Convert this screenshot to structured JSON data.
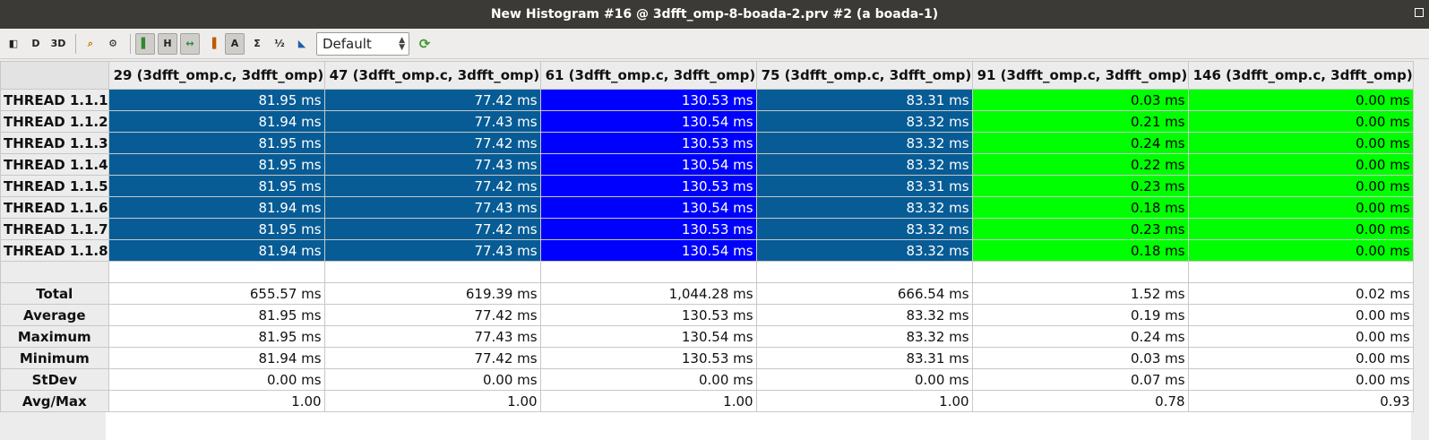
{
  "window": {
    "title": "New Histogram #16 @ 3dfft_omp-8-boada-2.prv #2 (a boada-1)"
  },
  "toolbar": {
    "buttons": [
      {
        "name": "ce-icon",
        "glyph": "◧",
        "pressed": false
      },
      {
        "name": "d-icon",
        "glyph": "D",
        "pressed": false
      },
      {
        "name": "3d-label-icon",
        "glyph": "3D",
        "pressed": false
      },
      {
        "name": "zoom-icon",
        "glyph": "⌕",
        "pressed": false
      },
      {
        "name": "search-gear-icon",
        "glyph": "⚙",
        "pressed": false
      },
      {
        "name": "gradient-color-icon",
        "glyph": "▌",
        "pressed": true
      },
      {
        "name": "horizontal-icon",
        "glyph": "H",
        "pressed": true
      },
      {
        "name": "fit-columns-icon",
        "glyph": "↔",
        "pressed": true
      },
      {
        "name": "color-columns-icon",
        "glyph": "▐",
        "pressed": false
      },
      {
        "name": "labels-icon",
        "glyph": "A",
        "pressed": true
      },
      {
        "name": "sum-icon",
        "glyph": "Σ",
        "pressed": false
      },
      {
        "name": "fraction-icon",
        "glyph": "½",
        "pressed": false
      },
      {
        "name": "cursor-icon",
        "glyph": "◣",
        "pressed": false
      }
    ],
    "select_value": "Default",
    "refresh_icon": "refresh-icon"
  },
  "table": {
    "columns": [
      "29 (3dfft_omp.c, 3dfft_omp)",
      "47 (3dfft_omp.c, 3dfft_omp)",
      "61 (3dfft_omp.c, 3dfft_omp)",
      "75 (3dfft_omp.c, 3dfft_omp)",
      "91 (3dfft_omp.c, 3dfft_omp)",
      "146 (3dfft_omp.c, 3dfft_omp)"
    ],
    "column_colors": [
      "#075c96",
      "#075c96",
      "#0000ff",
      "#075c96",
      "#00ff00",
      "#00ff00"
    ],
    "rows": [
      {
        "label": "THREAD 1.1.1",
        "values": [
          "81.95 ms",
          "77.42 ms",
          "130.53 ms",
          "83.31 ms",
          "0.03 ms",
          "0.00 ms"
        ]
      },
      {
        "label": "THREAD 1.1.2",
        "values": [
          "81.94 ms",
          "77.43 ms",
          "130.54 ms",
          "83.32 ms",
          "0.21 ms",
          "0.00 ms"
        ]
      },
      {
        "label": "THREAD 1.1.3",
        "values": [
          "81.95 ms",
          "77.42 ms",
          "130.53 ms",
          "83.32 ms",
          "0.24 ms",
          "0.00 ms"
        ]
      },
      {
        "label": "THREAD 1.1.4",
        "values": [
          "81.95 ms",
          "77.43 ms",
          "130.54 ms",
          "83.32 ms",
          "0.22 ms",
          "0.00 ms"
        ]
      },
      {
        "label": "THREAD 1.1.5",
        "values": [
          "81.95 ms",
          "77.42 ms",
          "130.53 ms",
          "83.31 ms",
          "0.23 ms",
          "0.00 ms"
        ]
      },
      {
        "label": "THREAD 1.1.6",
        "values": [
          "81.94 ms",
          "77.43 ms",
          "130.54 ms",
          "83.32 ms",
          "0.18 ms",
          "0.00 ms"
        ]
      },
      {
        "label": "THREAD 1.1.7",
        "values": [
          "81.95 ms",
          "77.42 ms",
          "130.53 ms",
          "83.32 ms",
          "0.23 ms",
          "0.00 ms"
        ]
      },
      {
        "label": "THREAD 1.1.8",
        "values": [
          "81.94 ms",
          "77.43 ms",
          "130.54 ms",
          "83.32 ms",
          "0.18 ms",
          "0.00 ms"
        ]
      }
    ],
    "stats": [
      {
        "label": "Total",
        "values": [
          "655.57 ms",
          "619.39 ms",
          "1,044.28 ms",
          "666.54 ms",
          "1.52 ms",
          "0.02 ms"
        ]
      },
      {
        "label": "Average",
        "values": [
          "81.95 ms",
          "77.42 ms",
          "130.53 ms",
          "83.32 ms",
          "0.19 ms",
          "0.00 ms"
        ]
      },
      {
        "label": "Maximum",
        "values": [
          "81.95 ms",
          "77.43 ms",
          "130.54 ms",
          "83.32 ms",
          "0.24 ms",
          "0.00 ms"
        ]
      },
      {
        "label": "Minimum",
        "values": [
          "81.94 ms",
          "77.42 ms",
          "130.53 ms",
          "83.31 ms",
          "0.03 ms",
          "0.00 ms"
        ]
      },
      {
        "label": "StDev",
        "values": [
          "0.00 ms",
          "0.00 ms",
          "0.00 ms",
          "0.00 ms",
          "0.07 ms",
          "0.00 ms"
        ]
      },
      {
        "label": "Avg/Max",
        "values": [
          "1.00",
          "1.00",
          "1.00",
          "1.00",
          "0.78",
          "0.93"
        ]
      }
    ]
  }
}
